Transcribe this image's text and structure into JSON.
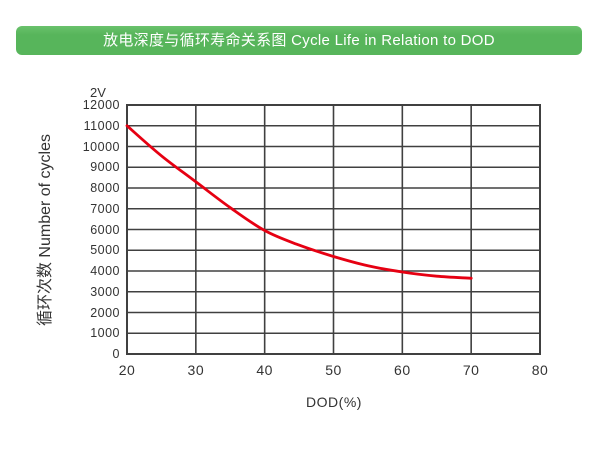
{
  "header": {
    "title": "放电深度与循环寿命关系图 Cycle Life in Relation to DOD"
  },
  "colors": {
    "banner_green": "#57b55b",
    "banner_green_light": "#6ac26c",
    "curve_red": "#e60012",
    "grid": "#404040",
    "text": "#333333"
  },
  "chart_data": {
    "type": "line",
    "title": "放电深度与循环寿命关系图 Cycle Life in Relation to DOD",
    "series_label": "2V",
    "xlabel": "DOD(%)",
    "ylabel": "循环次数 Number of cycles",
    "x": [
      20,
      25,
      30,
      35,
      40,
      45,
      50,
      55,
      60,
      65,
      70
    ],
    "values": [
      11000,
      9550,
      8300,
      7050,
      5950,
      5250,
      4700,
      4250,
      3950,
      3750,
      3650
    ],
    "x_ticks": [
      20,
      30,
      40,
      50,
      60,
      70,
      80
    ],
    "y_ticks": [
      0,
      1000,
      2000,
      3000,
      4000,
      5000,
      6000,
      7000,
      8000,
      9000,
      10000,
      11000,
      12000
    ],
    "xlim": [
      20,
      80
    ],
    "ylim": [
      0,
      12000
    ],
    "grid": true,
    "legend_position": "top-left-above-axis",
    "line_color": "#e60012"
  }
}
